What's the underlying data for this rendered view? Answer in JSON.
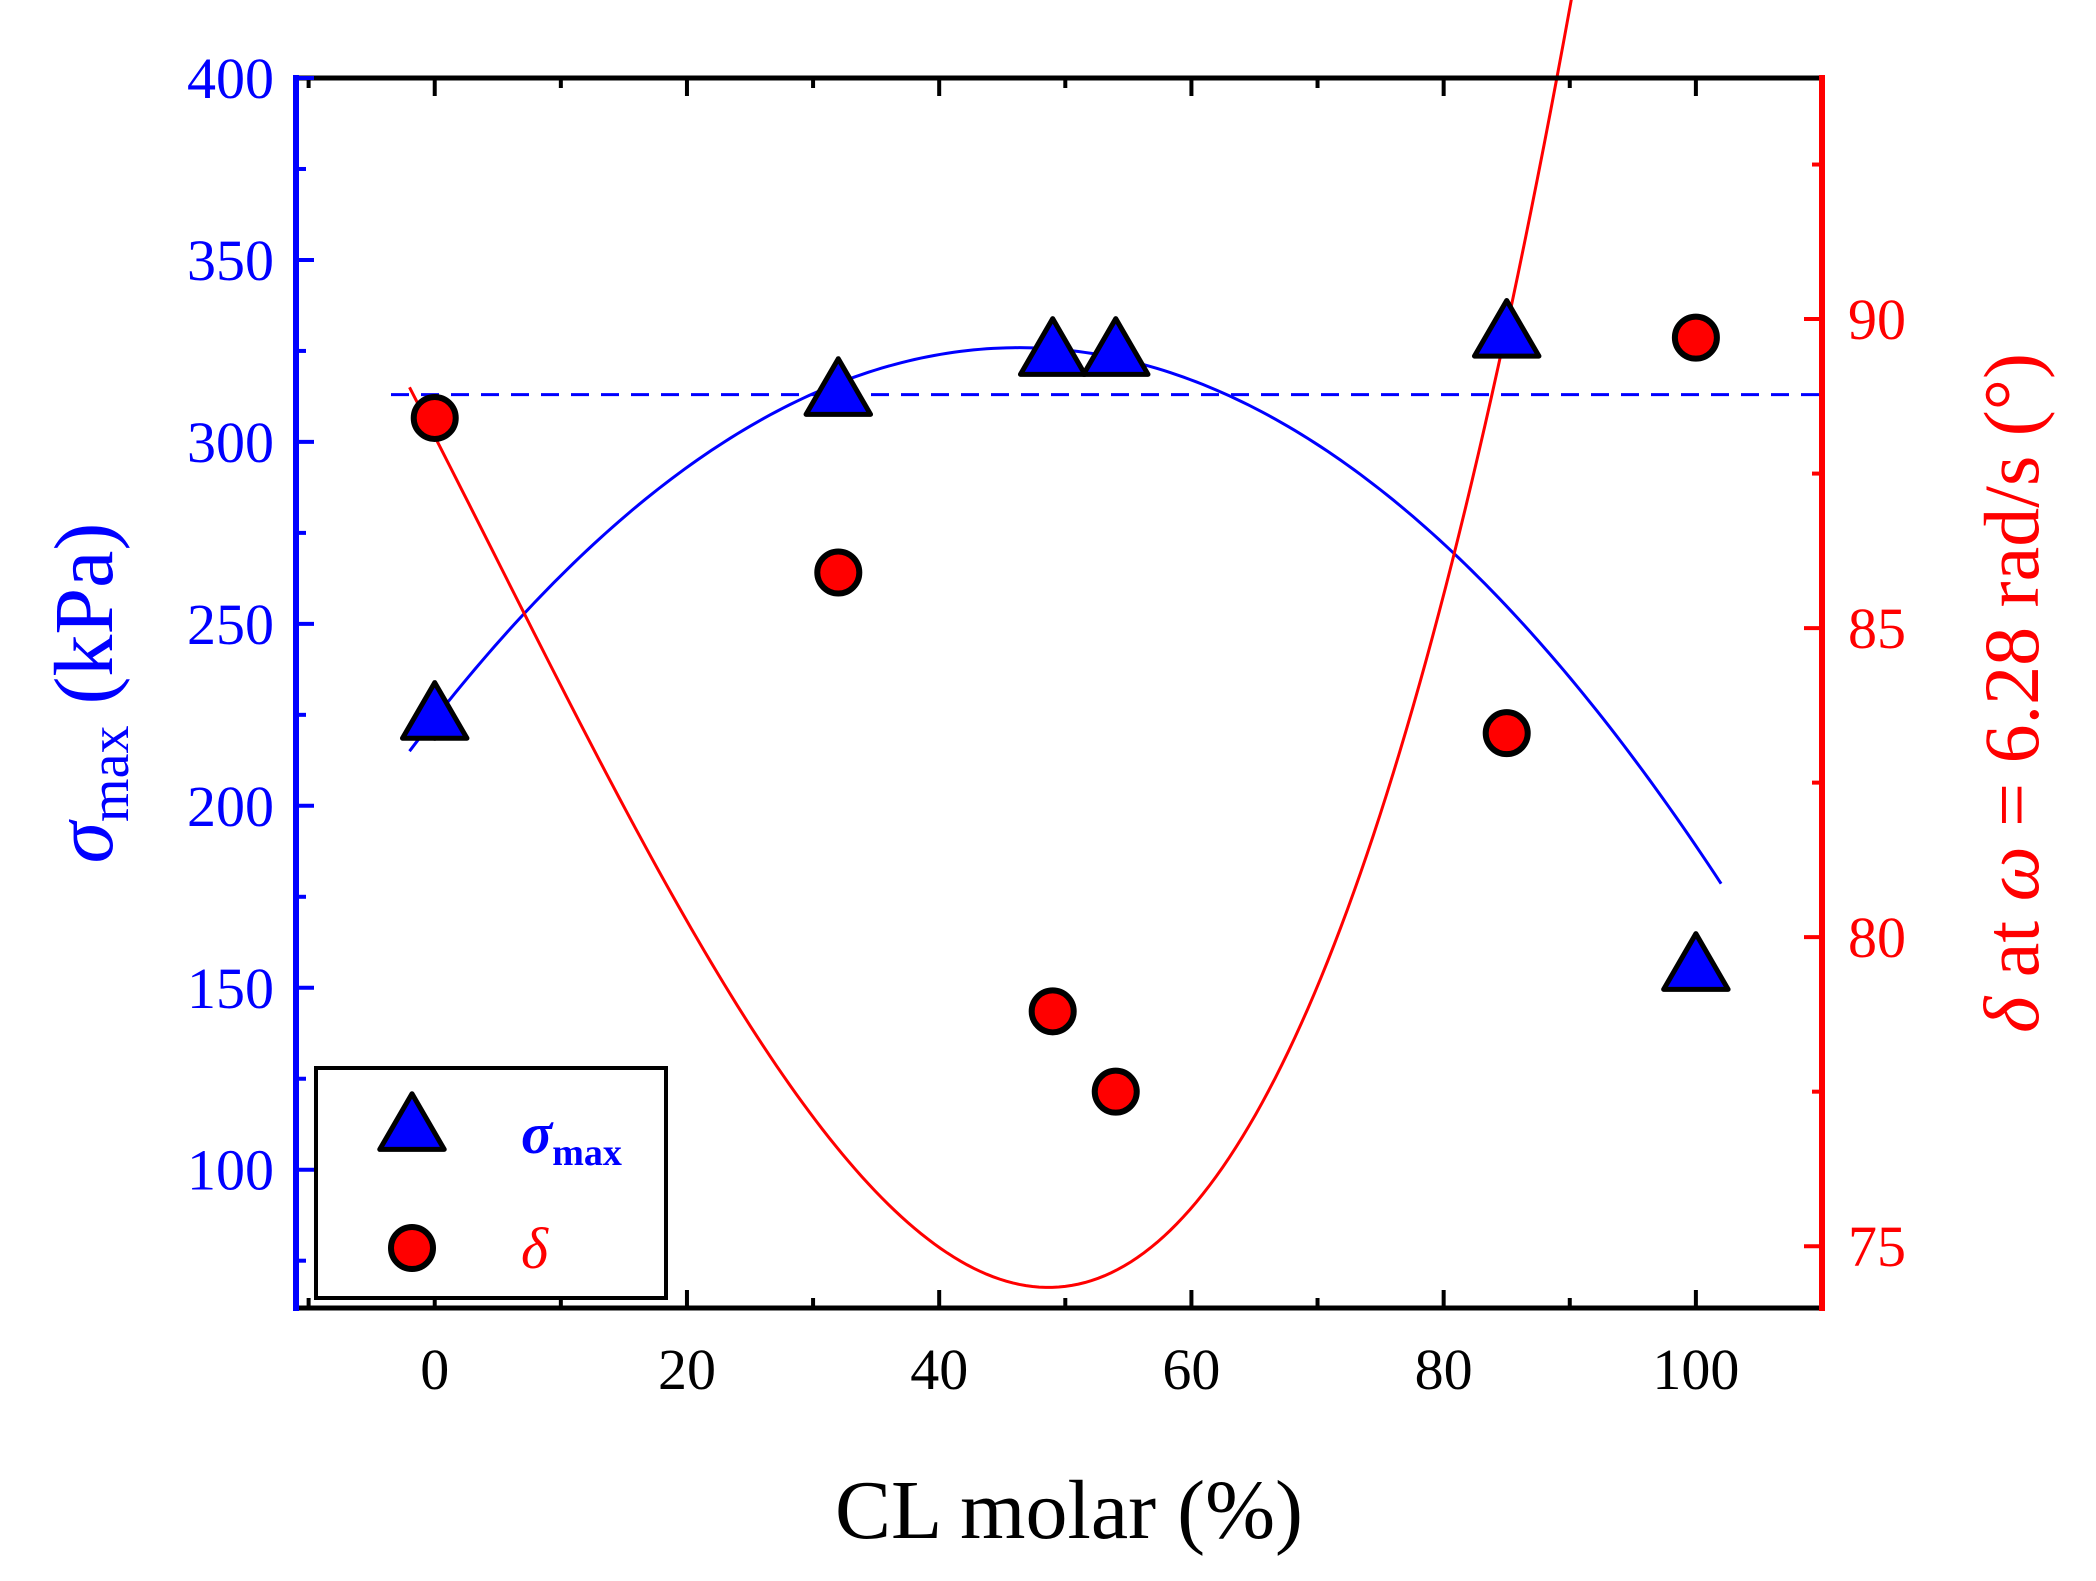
{
  "chart_data": {
    "type": "scatter",
    "title": "",
    "xlabel": "CL molar (%)",
    "ylabel_left": {
      "symbol": "σ",
      "subscript": "max",
      "unit": " (kPa)"
    },
    "ylabel_right": {
      "symbol": "δ",
      "middle": " at ",
      "omega": "ω",
      "rest": " = 6.28 rad/s (°)"
    },
    "xlim": [
      -11,
      110
    ],
    "ylim_left": [
      62,
      400
    ],
    "ylim_right": [
      74,
      93.9
    ],
    "x_ticks": [
      0,
      20,
      40,
      60,
      80,
      100
    ],
    "x_tick_labels": [
      "0",
      "20",
      "40",
      "60",
      "80",
      "100"
    ],
    "y_left_ticks": [
      100,
      150,
      200,
      250,
      300,
      350,
      400
    ],
    "y_left_tick_labels": [
      "100",
      "150",
      "200",
      "250",
      "300",
      "350",
      "400"
    ],
    "y_right_ticks": [
      75,
      80,
      85,
      90
    ],
    "y_right_tick_labels": [
      "75",
      "80",
      "85",
      "90"
    ],
    "colors": {
      "left_axis": "#0000ff",
      "right_axis": "#ff0000",
      "frame": "#000000",
      "sigma_fill": "#0000ff",
      "delta_fill": "#ff0000"
    },
    "series": [
      {
        "name": "σmax",
        "axis": "left",
        "marker": "triangle",
        "x": [
          0,
          32,
          49,
          54,
          85,
          100
        ],
        "y": [
          225,
          314,
          325,
          325,
          330,
          156
        ],
        "fit": {
          "type": "quadratic",
          "x_range": [
            -2,
            102
          ],
          "coefficients": [
            224.0,
            4.4,
            -0.0475
          ]
        },
        "reference_line": {
          "y": 313,
          "style": "dashed"
        }
      },
      {
        "name": "δ",
        "axis": "right",
        "marker": "circle",
        "x": [
          0,
          32,
          49,
          54,
          85,
          100
        ],
        "y": [
          88.4,
          85.9,
          78.8,
          77.5,
          83.3,
          89.7
        ],
        "fit": {
          "type": "cubic",
          "x_range": [
            -2,
            102
          ],
          "coefficients": [
            88.1,
            -0.4,
            -0.001,
            7e-05
          ]
        }
      }
    ],
    "legend": {
      "position": "bottom-left",
      "entries": [
        {
          "symbol": "σ",
          "subscript": "max",
          "marker": "triangle"
        },
        {
          "symbol": "δ",
          "subscript": "",
          "marker": "circle"
        }
      ]
    }
  }
}
